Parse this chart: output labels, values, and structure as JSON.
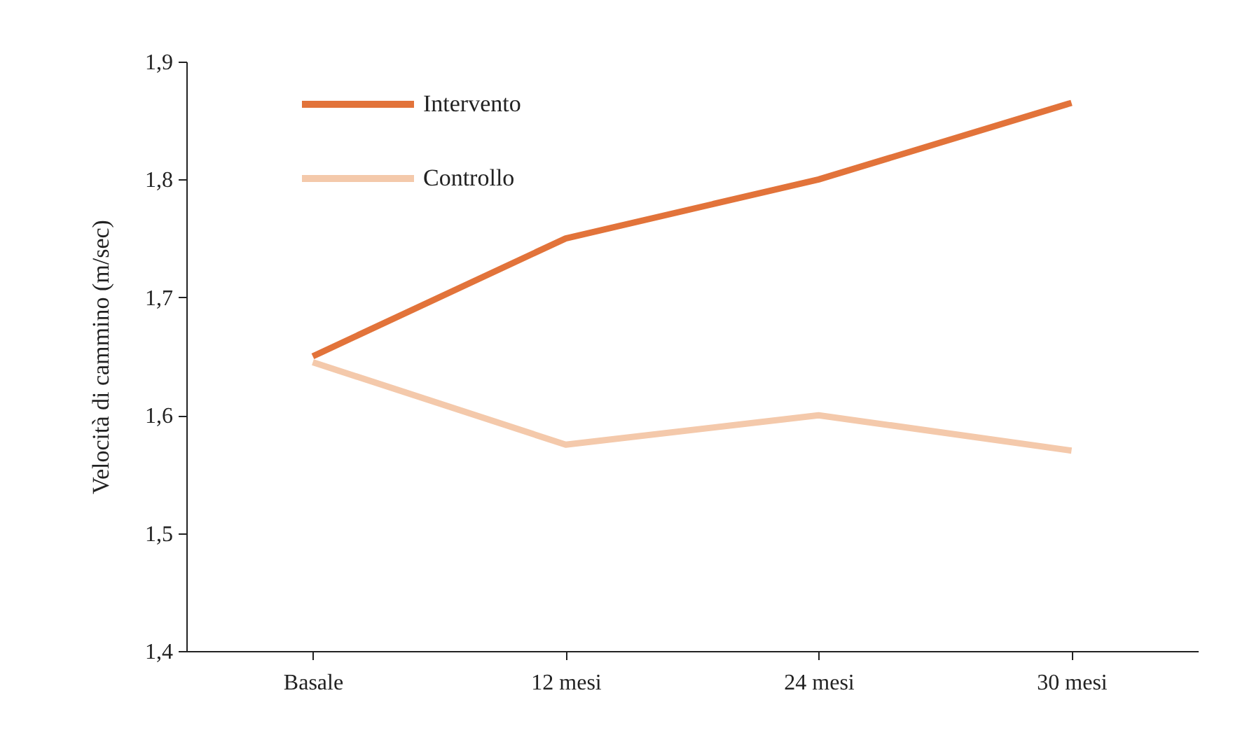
{
  "chart_data": {
    "type": "line",
    "ylabel": "Velocità di cammino (m/sec)",
    "categories": [
      "Basale",
      "12 mesi",
      "24 mesi",
      "30 mesi"
    ],
    "series": [
      {
        "name": "Intervento",
        "color": "#e2733a",
        "values": [
          1.65,
          1.75,
          1.8,
          1.865
        ]
      },
      {
        "name": "Controllo",
        "color": "#f4c9ab",
        "values": [
          1.645,
          1.575,
          1.6,
          1.57
        ]
      }
    ],
    "ylim": [
      1.4,
      1.9
    ],
    "yticks": [
      {
        "value": 1.4,
        "label": "1,4"
      },
      {
        "value": 1.5,
        "label": "1,5"
      },
      {
        "value": 1.6,
        "label": "1,6"
      },
      {
        "value": 1.7,
        "label": "1,7"
      },
      {
        "value": 1.8,
        "label": "1,8"
      },
      {
        "value": 1.9,
        "label": "1,9"
      }
    ],
    "grid": false,
    "legend": "top left",
    "marker": "none",
    "line_style": "solid"
  }
}
